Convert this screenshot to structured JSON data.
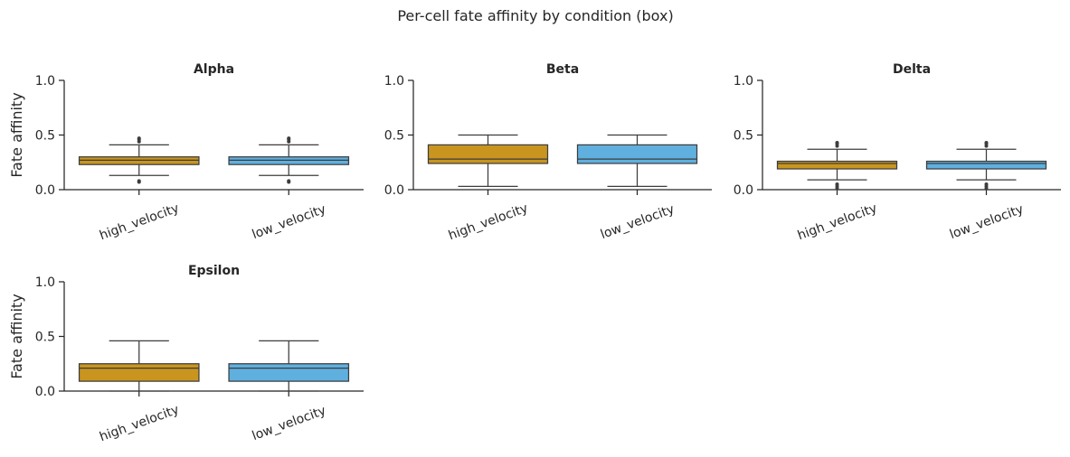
{
  "title": "Per-cell fate affinity by condition (box)",
  "colors": {
    "high_velocity": "#c9951f",
    "low_velocity": "#5fb0df"
  },
  "chart_data": [
    {
      "type": "box",
      "title": "Alpha",
      "ylabel": "Fate affinity",
      "ylim": [
        0,
        1
      ],
      "yticks": [
        "0.0",
        "0.5",
        "1.0"
      ],
      "categories": [
        "high_velocity",
        "low_velocity"
      ],
      "boxes": [
        {
          "name": "high_velocity",
          "whislo": 0.13,
          "q1": 0.23,
          "med": 0.27,
          "q3": 0.3,
          "whishi": 0.41,
          "fliers": [
            0.07,
            0.08,
            0.44,
            0.46,
            0.47
          ]
        },
        {
          "name": "low_velocity",
          "whislo": 0.13,
          "q1": 0.23,
          "med": 0.27,
          "q3": 0.3,
          "whishi": 0.41,
          "fliers": [
            0.07,
            0.08,
            0.44,
            0.46,
            0.47
          ]
        }
      ]
    },
    {
      "type": "box",
      "title": "Beta",
      "ylabel": "",
      "ylim": [
        0,
        1
      ],
      "yticks": [
        "0.0",
        "0.5",
        "1.0"
      ],
      "categories": [
        "high_velocity",
        "low_velocity"
      ],
      "boxes": [
        {
          "name": "high_velocity",
          "whislo": 0.03,
          "q1": 0.24,
          "med": 0.28,
          "q3": 0.41,
          "whishi": 0.5,
          "fliers": []
        },
        {
          "name": "low_velocity",
          "whislo": 0.03,
          "q1": 0.24,
          "med": 0.28,
          "q3": 0.41,
          "whishi": 0.5,
          "fliers": []
        }
      ]
    },
    {
      "type": "box",
      "title": "Delta",
      "ylabel": "",
      "ylim": [
        0,
        1
      ],
      "yticks": [
        "0.0",
        "0.5",
        "1.0"
      ],
      "categories": [
        "high_velocity",
        "low_velocity"
      ],
      "boxes": [
        {
          "name": "high_velocity",
          "whislo": 0.09,
          "q1": 0.19,
          "med": 0.24,
          "q3": 0.26,
          "whishi": 0.37,
          "fliers": [
            0.01,
            0.03,
            0.05,
            0.4,
            0.42,
            0.43
          ]
        },
        {
          "name": "low_velocity",
          "whislo": 0.09,
          "q1": 0.19,
          "med": 0.24,
          "q3": 0.26,
          "whishi": 0.37,
          "fliers": [
            0.01,
            0.03,
            0.05,
            0.4,
            0.42,
            0.43
          ]
        }
      ]
    },
    {
      "type": "box",
      "title": "Epsilon",
      "ylabel": "Fate affinity",
      "ylim": [
        0,
        1
      ],
      "yticks": [
        "0.0",
        "0.5",
        "1.0"
      ],
      "categories": [
        "high_velocity",
        "low_velocity"
      ],
      "boxes": [
        {
          "name": "high_velocity",
          "whislo": 0.0,
          "q1": 0.09,
          "med": 0.21,
          "q3": 0.25,
          "whishi": 0.46,
          "fliers": []
        },
        {
          "name": "low_velocity",
          "whislo": 0.0,
          "q1": 0.09,
          "med": 0.21,
          "q3": 0.25,
          "whishi": 0.46,
          "fliers": []
        }
      ]
    }
  ]
}
